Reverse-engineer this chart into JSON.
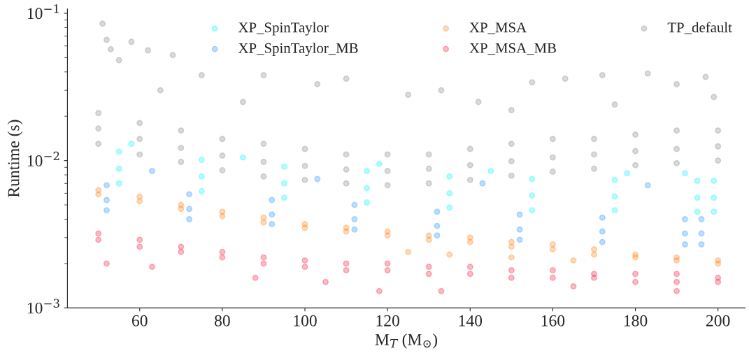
{
  "chart_data": {
    "type": "scatter",
    "xlabel": "M$_{T}$ (M$_{⊙}$)",
    "ylabel": "Runtime (s)",
    "log": "y",
    "grid": false,
    "legend": "top right",
    "marker": "circle",
    "xlim": [
      42.5,
      206.6
    ],
    "xticks": [
      60,
      80,
      100,
      120,
      140,
      160,
      180,
      200
    ],
    "ylim": [
      0.001,
      0.107
    ],
    "yticks": [
      {
        "value": 0.001,
        "label": "10$^{−3}$"
      },
      {
        "value": 0.01,
        "label": "10$^{−2}$"
      },
      {
        "value": 0.1,
        "label": "10$^{−1}$"
      }
    ],
    "series": [
      {
        "name": "XP_SpinTaylor",
        "color": "#00f5f5",
        "x": [
          55,
          75,
          95,
          115,
          135,
          155,
          175,
          195,
          199,
          55,
          75,
          95,
          115,
          135,
          155,
          175,
          195,
          199,
          55,
          75,
          95,
          115,
          135,
          155,
          175,
          195,
          199,
          58,
          85,
          118,
          145,
          178,
          192
        ],
        "values": [
          0.0088,
          0.0078,
          0.007,
          0.0065,
          0.006,
          0.0058,
          0.0057,
          0.0056,
          0.0056,
          0.0115,
          0.0101,
          0.0091,
          0.0085,
          0.0078,
          0.0075,
          0.0074,
          0.0073,
          0.0073,
          0.007,
          0.0062,
          0.0056,
          0.0052,
          0.0048,
          0.0046,
          0.0046,
          0.0045,
          0.0045,
          0.013,
          0.0105,
          0.0095,
          0.0085,
          0.0082,
          0.0082
        ]
      },
      {
        "name": "XP_SpinTaylor_MB",
        "color": "#1e90ff",
        "x": [
          52,
          72,
          92,
          112,
          132,
          152,
          172,
          192,
          196,
          52,
          72,
          92,
          112,
          132,
          152,
          172,
          192,
          196,
          52,
          72,
          92,
          112,
          132,
          152,
          172,
          192,
          196,
          63,
          103,
          143,
          183
        ],
        "values": [
          0.0054,
          0.0047,
          0.0043,
          0.004,
          0.0036,
          0.0034,
          0.0033,
          0.0032,
          0.0032,
          0.0068,
          0.0059,
          0.0054,
          0.005,
          0.0045,
          0.0043,
          0.0041,
          0.004,
          0.004,
          0.0046,
          0.004,
          0.0037,
          0.0034,
          0.0031,
          0.0029,
          0.0028,
          0.0027,
          0.0027,
          0.0085,
          0.0075,
          0.007,
          0.0068
        ]
      },
      {
        "name": "XP_MSA",
        "color": "#ff7f0e",
        "x": [
          50,
          60,
          70,
          80,
          90,
          100,
          110,
          120,
          130,
          140,
          150,
          160,
          170,
          180,
          190,
          200,
          50,
          60,
          70,
          80,
          90,
          100,
          110,
          120,
          130,
          140,
          150,
          160,
          170,
          180,
          190,
          200,
          125,
          135,
          150,
          165
        ],
        "values": [
          0.0059,
          0.0053,
          0.0047,
          0.0042,
          0.0038,
          0.0035,
          0.0033,
          0.0031,
          0.0029,
          0.0028,
          0.0026,
          0.0025,
          0.0023,
          0.0022,
          0.0021,
          0.002,
          0.0063,
          0.0057,
          0.005,
          0.0045,
          0.0041,
          0.0037,
          0.0035,
          0.0033,
          0.0031,
          0.003,
          0.0028,
          0.0027,
          0.0025,
          0.0023,
          0.0022,
          0.0021,
          0.0024,
          0.0023,
          0.0022,
          0.0021
        ]
      },
      {
        "name": "XP_MSA_MB",
        "color": "#f5173a",
        "x": [
          50,
          60,
          70,
          80,
          90,
          100,
          110,
          120,
          130,
          140,
          150,
          160,
          170,
          180,
          190,
          200,
          50,
          60,
          70,
          80,
          90,
          100,
          110,
          120,
          130,
          140,
          150,
          160,
          170,
          180,
          190,
          200,
          52,
          63,
          88,
          105,
          118,
          133,
          165,
          190
        ],
        "values": [
          0.0029,
          0.0026,
          0.0024,
          0.0022,
          0.002,
          0.0019,
          0.0018,
          0.0018,
          0.0017,
          0.0017,
          0.0016,
          0.0016,
          0.0016,
          0.0015,
          0.0015,
          0.0015,
          0.0032,
          0.0029,
          0.0026,
          0.0024,
          0.0022,
          0.0021,
          0.002,
          0.002,
          0.0019,
          0.0019,
          0.0018,
          0.0018,
          0.0017,
          0.0017,
          0.0017,
          0.0016,
          0.002,
          0.0019,
          0.0016,
          0.0015,
          0.0013,
          0.0013,
          0.0014,
          0.0013
        ]
      },
      {
        "name": "TP_default",
        "color": "#808080",
        "x": [
          50,
          60,
          70,
          80,
          90,
          100,
          110,
          120,
          130,
          140,
          150,
          160,
          170,
          180,
          190,
          200,
          50,
          60,
          70,
          80,
          90,
          100,
          110,
          120,
          130,
          140,
          150,
          160,
          170,
          180,
          190,
          200,
          50,
          60,
          70,
          80,
          90,
          100,
          110,
          120,
          130,
          140,
          150,
          160,
          170,
          180,
          190,
          200,
          51,
          52,
          53,
          55,
          58,
          62,
          68,
          75,
          90,
          103,
          110,
          125,
          133,
          142,
          155,
          163,
          172,
          183,
          190,
          197,
          199,
          85,
          65,
          150,
          175
        ],
        "values": [
          0.0165,
          0.014,
          0.0122,
          0.0108,
          0.0098,
          0.0092,
          0.0087,
          0.0085,
          0.0088,
          0.0093,
          0.0099,
          0.0105,
          0.011,
          0.0116,
          0.012,
          0.0125,
          0.021,
          0.018,
          0.016,
          0.014,
          0.013,
          0.012,
          0.011,
          0.011,
          0.011,
          0.012,
          0.013,
          0.014,
          0.014,
          0.015,
          0.016,
          0.016,
          0.013,
          0.011,
          0.0098,
          0.0086,
          0.0078,
          0.0074,
          0.007,
          0.0068,
          0.007,
          0.0074,
          0.0079,
          0.0084,
          0.0088,
          0.0093,
          0.0096,
          0.01,
          0.085,
          0.066,
          0.057,
          0.048,
          0.064,
          0.056,
          0.052,
          0.038,
          0.038,
          0.033,
          0.036,
          0.028,
          0.03,
          0.025,
          0.034,
          0.036,
          0.038,
          0.039,
          0.033,
          0.037,
          0.027,
          0.025,
          0.03,
          0.022,
          0.024
        ]
      }
    ]
  }
}
